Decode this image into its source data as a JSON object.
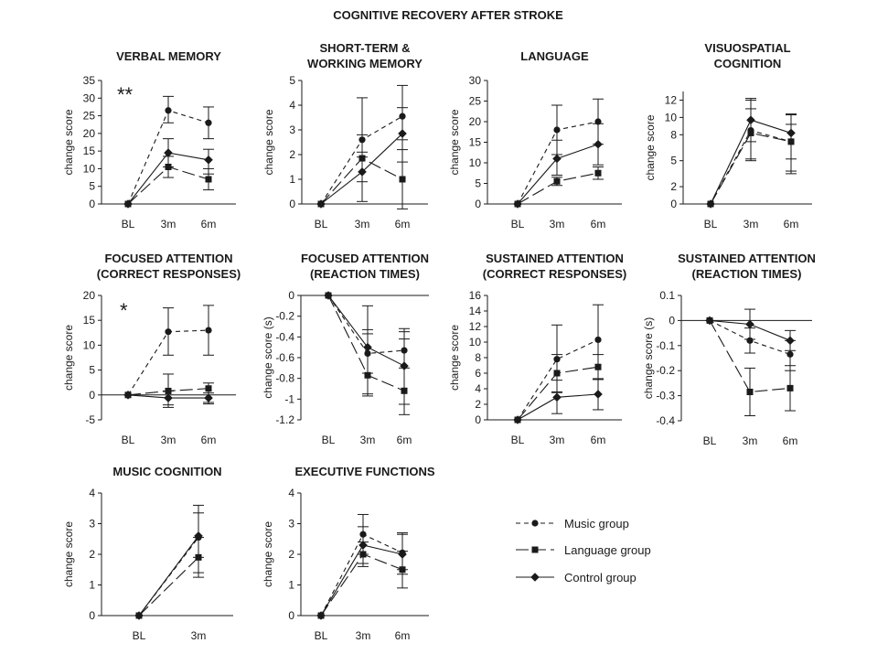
{
  "figure_title": "COGNITIVE RECOVERY AFTER STROKE",
  "legend": [
    {
      "key": "music",
      "label": "Music group",
      "marker": "circle",
      "dash": "dashed"
    },
    {
      "key": "language",
      "label": "Language group",
      "marker": "square",
      "dash": "longdash"
    },
    {
      "key": "control",
      "label": "Control group",
      "marker": "diamond",
      "dash": "solid"
    }
  ],
  "chart_data": [
    {
      "type": "line",
      "title": [
        "VERBAL MEMORY"
      ],
      "ylabel": "change score",
      "x": [
        "BL",
        "3m",
        "6m"
      ],
      "ylim": [
        0,
        35
      ],
      "yticks": [
        0,
        5,
        10,
        15,
        20,
        25,
        30,
        35
      ],
      "annotation": "**",
      "series": [
        {
          "name": "Music group",
          "values": [
            0,
            26.5,
            23
          ],
          "err_low": [
            0,
            23,
            18.5
          ],
          "err_high": [
            0,
            30.5,
            27.5
          ]
        },
        {
          "name": "Language group",
          "values": [
            0,
            10.5,
            7
          ],
          "err_low": [
            0,
            7.5,
            4
          ],
          "err_high": [
            0,
            13.5,
            10
          ]
        },
        {
          "name": "Control group",
          "values": [
            0,
            14.5,
            12.5
          ],
          "err_low": [
            0,
            10.5,
            8.5
          ],
          "err_high": [
            0,
            18.5,
            15.5
          ]
        }
      ]
    },
    {
      "type": "line",
      "title": [
        "SHORT-TERM &",
        "WORKING MEMORY"
      ],
      "ylabel": "change score",
      "x": [
        "BL",
        "3m",
        "6m"
      ],
      "ylim": [
        0,
        5
      ],
      "yticks": [
        0,
        1,
        2,
        3,
        4,
        5
      ],
      "series": [
        {
          "name": "Music group",
          "values": [
            0,
            2.6,
            3.55
          ],
          "err_low": [
            0,
            1.9,
            2.6
          ],
          "err_high": [
            0,
            2.8,
            4.8
          ]
        },
        {
          "name": "Language group",
          "values": [
            0,
            1.85,
            1.0
          ],
          "err_low": [
            0,
            0.1,
            -0.2
          ],
          "err_high": [
            0,
            4.3,
            2.2
          ]
        },
        {
          "name": "Control group",
          "values": [
            0,
            1.3,
            2.85
          ],
          "err_low": [
            0,
            0.9,
            1.7
          ],
          "err_high": [
            0,
            2.1,
            3.9
          ]
        }
      ]
    },
    {
      "type": "line",
      "title": [
        "LANGUAGE"
      ],
      "ylabel": "change score",
      "x": [
        "BL",
        "3m",
        "6m"
      ],
      "ylim": [
        0,
        30
      ],
      "yticks": [
        0,
        5,
        10,
        15,
        20,
        25,
        30
      ],
      "series": [
        {
          "name": "Music group",
          "values": [
            0,
            18,
            20
          ],
          "err_low": [
            0,
            12,
            14.5
          ],
          "err_high": [
            0,
            24,
            25.5
          ]
        },
        {
          "name": "Language group",
          "values": [
            0,
            5.5,
            7.5
          ],
          "err_low": [
            0,
            4.5,
            6
          ],
          "err_high": [
            0,
            6.5,
            9
          ]
        },
        {
          "name": "Control group",
          "values": [
            0,
            11,
            14.5
          ],
          "err_low": [
            0,
            7,
            9.5
          ],
          "err_high": [
            0,
            15.5,
            19.5
          ]
        }
      ]
    },
    {
      "type": "line",
      "title": [
        "VISUOSPATIAL",
        "COGNITION"
      ],
      "ylabel": "change score",
      "x": [
        "BL",
        "3m",
        "6m"
      ],
      "ylim": [
        0,
        13
      ],
      "yticks": [
        0,
        2,
        5,
        8,
        10,
        12
      ],
      "series": [
        {
          "name": "Music group",
          "values": [
            0,
            8.5,
            7.2
          ],
          "err_low": [
            0,
            5.0,
            3.8
          ],
          "err_high": [
            0,
            12.0,
            10.3
          ]
        },
        {
          "name": "Language group",
          "values": [
            0,
            8.2,
            7.2
          ],
          "err_low": [
            0,
            5.2,
            3.5
          ],
          "err_high": [
            0,
            11.0,
            9.2
          ]
        },
        {
          "name": "Control group",
          "values": [
            0,
            9.7,
            8.2
          ],
          "err_low": [
            0,
            7.2,
            5.2
          ],
          "err_high": [
            0,
            12.2,
            10.4
          ]
        }
      ]
    },
    {
      "type": "line",
      "title": [
        "FOCUSED ATTENTION",
        "(CORRECT RESPONSES)"
      ],
      "ylabel": "change score",
      "x": [
        "BL",
        "3m",
        "6m"
      ],
      "ylim": [
        -5,
        20
      ],
      "yticks": [
        -5,
        0,
        5,
        10,
        15,
        20
      ],
      "annotation": "*",
      "series": [
        {
          "name": "Music group",
          "values": [
            0,
            12.7,
            13
          ],
          "err_low": [
            0,
            8,
            8
          ],
          "err_high": [
            0,
            17.5,
            18
          ]
        },
        {
          "name": "Language group",
          "values": [
            0,
            0.8,
            1.3
          ],
          "err_low": [
            0,
            -2.5,
            -1.8
          ],
          "err_high": [
            0,
            4.2,
            2.4
          ]
        },
        {
          "name": "Control group",
          "values": [
            0,
            -0.6,
            -0.6
          ],
          "err_low": [
            0,
            -2,
            -1.5
          ],
          "err_high": [
            0,
            0.8,
            0.4
          ]
        }
      ]
    },
    {
      "type": "line",
      "title": [
        "FOCUSED ATTENTION",
        "(REACTION TIMES)"
      ],
      "ylabel": "change score (s)",
      "x": [
        "BL",
        "3m",
        "6m"
      ],
      "ylim": [
        -1.2,
        0
      ],
      "yticks": [
        0,
        -0.2,
        -0.4,
        -0.6,
        -0.8,
        -1,
        -1.2
      ],
      "series": [
        {
          "name": "Music group",
          "values": [
            0,
            -0.56,
            -0.53
          ],
          "err_low": [
            0,
            -0.75,
            -0.7
          ],
          "err_high": [
            0,
            -0.37,
            -0.35
          ]
        },
        {
          "name": "Language group",
          "values": [
            0,
            -0.77,
            -0.92
          ],
          "err_low": [
            0,
            -0.95,
            -1.15
          ],
          "err_high": [
            0,
            -0.1,
            -0.32
          ]
        },
        {
          "name": "Control group",
          "values": [
            0,
            -0.5,
            -0.68
          ],
          "err_low": [
            0,
            -0.97,
            -1.05
          ],
          "err_high": [
            0,
            -0.33,
            -0.42
          ]
        }
      ]
    },
    {
      "type": "line",
      "title": [
        "SUSTAINED ATTENTION",
        "(CORRECT RESPONSES)"
      ],
      "ylabel": "change score",
      "x": [
        "BL",
        "3m",
        "6m"
      ],
      "ylim": [
        0,
        16
      ],
      "yticks": [
        0,
        2,
        4,
        6,
        8,
        10,
        12,
        14,
        16
      ],
      "series": [
        {
          "name": "Music group",
          "values": [
            0,
            7.8,
            10.3
          ],
          "err_low": [
            0,
            3.5,
            5.2
          ],
          "err_high": [
            0,
            12.2,
            14.8
          ]
        },
        {
          "name": "Language group",
          "values": [
            0,
            6,
            6.8
          ],
          "err_low": [
            0,
            3.6,
            5.2
          ],
          "err_high": [
            0,
            8.4,
            8.4
          ]
        },
        {
          "name": "Control group",
          "values": [
            0,
            2.9,
            3.3
          ],
          "err_low": [
            0,
            0.8,
            1.3
          ],
          "err_high": [
            0,
            5.1,
            5.3
          ]
        }
      ]
    },
    {
      "type": "line",
      "title": [
        "SUSTAINED ATTENTION",
        "(REACTION TIMES)"
      ],
      "ylabel": "change score (s)",
      "x": [
        "BL",
        "3m",
        "6m"
      ],
      "ylim": [
        -0.4,
        0.1
      ],
      "yticks": [
        0.1,
        0,
        -0.1,
        -0.2,
        -0.3,
        -0.4
      ],
      "series": [
        {
          "name": "Music group",
          "values": [
            0,
            -0.08,
            -0.135
          ],
          "err_low": [
            0,
            -0.13,
            -0.2
          ],
          "err_high": [
            0,
            -0.03,
            -0.08
          ]
        },
        {
          "name": "Language group",
          "values": [
            0,
            -0.285,
            -0.27
          ],
          "err_low": [
            0,
            -0.38,
            -0.36
          ],
          "err_high": [
            0,
            -0.19,
            -0.18
          ]
        },
        {
          "name": "Control group",
          "values": [
            0,
            -0.015,
            -0.08
          ],
          "err_low": [
            0,
            -0.075,
            -0.12
          ],
          "err_high": [
            0,
            0.045,
            -0.04
          ]
        }
      ]
    },
    {
      "type": "line",
      "title": [
        "MUSIC COGNITION"
      ],
      "ylabel": "change score",
      "x": [
        "BL",
        "3m"
      ],
      "ylim": [
        0,
        4
      ],
      "yticks": [
        0,
        1,
        2,
        3,
        4
      ],
      "series": [
        {
          "name": "Music group",
          "values": [
            0,
            2.55
          ],
          "err_low": [
            0,
            1.4
          ],
          "err_high": [
            0,
            3.6
          ]
        },
        {
          "name": "Language group",
          "values": [
            0,
            1.9
          ],
          "err_low": [
            0,
            1.25
          ],
          "err_high": [
            0,
            2.55
          ]
        },
        {
          "name": "Control group",
          "values": [
            0,
            2.6
          ],
          "err_low": [
            0,
            1.9
          ],
          "err_high": [
            0,
            3.35
          ]
        }
      ]
    },
    {
      "type": "line",
      "title": [
        "EXECUTIVE FUNCTIONS"
      ],
      "ylabel": "change score",
      "x": [
        "BL",
        "3m",
        "6m"
      ],
      "ylim": [
        0,
        4
      ],
      "yticks": [
        0,
        1,
        2,
        3,
        4
      ],
      "series": [
        {
          "name": "Music group",
          "values": [
            0,
            2.65,
            2.05
          ],
          "err_low": [
            0,
            2.0,
            1.5
          ],
          "err_high": [
            0,
            3.3,
            2.65
          ]
        },
        {
          "name": "Language group",
          "values": [
            0,
            2.0,
            1.5
          ],
          "err_low": [
            0,
            1.6,
            0.9
          ],
          "err_high": [
            0,
            2.4,
            2.1
          ]
        },
        {
          "name": "Control group",
          "values": [
            0,
            2.3,
            2.0
          ],
          "err_low": [
            0,
            1.7,
            1.35
          ],
          "err_high": [
            0,
            2.9,
            2.7
          ]
        }
      ]
    }
  ]
}
